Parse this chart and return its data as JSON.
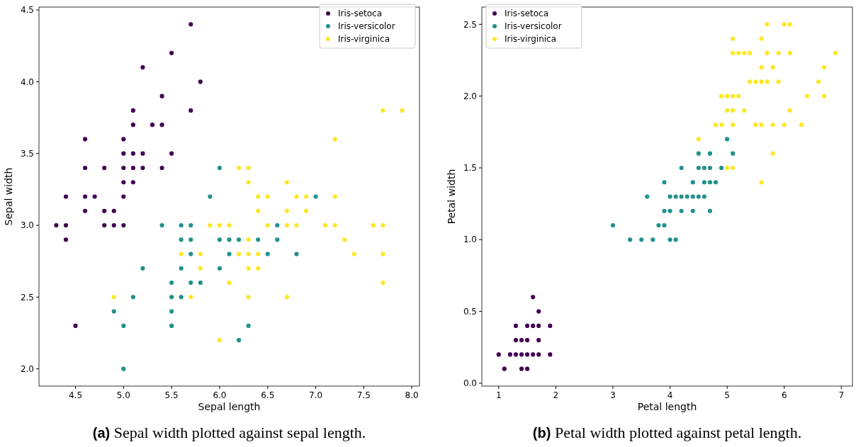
{
  "chart_data": [
    {
      "type": "scatter",
      "xlabel": "Sepal length",
      "ylabel": "Sepal width",
      "annotations": [
        "(a) Sepal width plotted against sepal length."
      ],
      "xlim": [
        4.12,
        8.08
      ],
      "ylim": [
        1.88,
        4.52
      ],
      "xticks": [
        {
          "value": 4.5,
          "label": "4.5"
        },
        {
          "value": 5,
          "label": "5.0"
        },
        {
          "value": 5.5,
          "label": "5.5"
        },
        {
          "value": 6,
          "label": "6.0"
        },
        {
          "value": 6.5,
          "label": "6.5"
        },
        {
          "value": 7,
          "label": "7.0"
        },
        {
          "value": 7.5,
          "label": "7.5"
        },
        {
          "value": 8,
          "label": "8.0"
        }
      ],
      "yticks": [
        {
          "value": 2,
          "label": "2.0"
        },
        {
          "value": 2.5,
          "label": "2.5"
        },
        {
          "value": 3,
          "label": "3.0"
        },
        {
          "value": 3.5,
          "label": "3.5"
        },
        {
          "value": 4,
          "label": "4.0"
        },
        {
          "value": 4.5,
          "label": "4.5"
        }
      ],
      "legend": "top right",
      "marker": "circle",
      "grid": false,
      "series": [
        {
          "name": "Iris-setoca",
          "color": "#440154",
          "x": [
            5.1,
            4.9,
            4.7,
            4.6,
            5.0,
            5.4,
            4.6,
            5.0,
            4.4,
            4.9,
            5.4,
            4.8,
            4.8,
            4.3,
            5.8,
            5.7,
            5.7,
            5.1,
            5.4,
            5.1,
            4.6,
            5.1,
            5.0,
            5.2,
            5.2,
            4.8,
            5.2,
            5.5,
            5.0,
            5.5,
            4.4,
            5.1,
            5.0,
            4.5,
            4.4,
            4.6,
            5.3,
            5.0
          ],
          "values": [
            3.5,
            3.0,
            3.2,
            3.1,
            3.6,
            3.9,
            3.4,
            3.4,
            2.9,
            3.1,
            3.7,
            3.4,
            3.0,
            3.0,
            4.0,
            4.4,
            3.8,
            3.8,
            3.4,
            3.7,
            3.6,
            3.3,
            3.0,
            3.5,
            3.4,
            3.1,
            4.1,
            4.2,
            3.2,
            3.5,
            3.0,
            3.4,
            3.5,
            2.3,
            3.2,
            3.2,
            3.7,
            3.3
          ]
        },
        {
          "name": "Iris-versicolor",
          "color": "#21918c",
          "x": [
            7.0,
            5.5,
            6.5,
            5.7,
            4.9,
            6.6,
            5.2,
            5.0,
            6.1,
            5.6,
            5.6,
            6.2,
            5.6,
            5.9,
            6.1,
            6.4,
            6.6,
            6.8,
            6.0,
            5.7,
            5.5,
            6.0,
            5.4,
            6.0,
            6.3,
            5.5,
            5.5,
            5.8,
            5.0,
            5.6,
            5.7,
            5.7,
            6.2,
            5.1
          ],
          "values": [
            3.2,
            2.3,
            2.8,
            2.8,
            2.4,
            2.9,
            2.7,
            2.0,
            2.9,
            2.9,
            3.0,
            2.2,
            2.5,
            3.2,
            2.8,
            2.9,
            3.0,
            2.8,
            2.9,
            2.6,
            2.4,
            2.7,
            3.0,
            3.4,
            2.3,
            2.5,
            2.6,
            2.6,
            2.3,
            2.7,
            3.0,
            2.9,
            2.9,
            2.5
          ]
        },
        {
          "name": "Iris-virginica",
          "color": "#fde725",
          "x": [
            6.3,
            5.8,
            7.1,
            6.3,
            6.5,
            7.6,
            4.9,
            7.3,
            6.7,
            7.2,
            6.5,
            6.4,
            6.8,
            5.7,
            5.8,
            6.4,
            7.7,
            7.7,
            6.0,
            6.9,
            5.6,
            7.7,
            6.3,
            6.7,
            7.2,
            6.2,
            6.1,
            6.4,
            7.2,
            7.4,
            7.9,
            6.3,
            6.1,
            7.7,
            6.3,
            6.4,
            6.0,
            6.9,
            6.7,
            6.8,
            6.7,
            6.3,
            6.2,
            5.9
          ],
          "values": [
            3.3,
            2.7,
            3.0,
            2.9,
            3.0,
            3.0,
            2.5,
            2.9,
            2.5,
            3.6,
            3.2,
            2.7,
            3.0,
            2.5,
            2.8,
            3.2,
            3.8,
            2.6,
            2.2,
            3.2,
            2.8,
            2.8,
            2.7,
            3.3,
            3.2,
            2.8,
            3.0,
            2.8,
            3.0,
            2.8,
            3.8,
            2.8,
            2.6,
            3.0,
            3.4,
            3.1,
            3.0,
            3.1,
            3.1,
            3.2,
            3.0,
            2.5,
            3.4,
            3.0
          ]
        }
      ]
    },
    {
      "type": "scatter",
      "xlabel": "Petal length",
      "ylabel": "Petal width",
      "annotations": [
        "(b) Petal width plotted against petal length."
      ],
      "xlim": [
        0.705,
        7.195
      ],
      "ylim": [
        -0.02,
        2.62
      ],
      "xticks": [
        1,
        2,
        3,
        4,
        5,
        6,
        7
      ],
      "yticks": [
        {
          "value": 0,
          "label": "0.0"
        },
        {
          "value": 0.5,
          "label": "0.5"
        },
        {
          "value": 1,
          "label": "1.0"
        },
        {
          "value": 1.5,
          "label": "1.5"
        },
        {
          "value": 2,
          "label": "2.0"
        },
        {
          "value": 2.5,
          "label": "2.5"
        }
      ],
      "legend": "top left",
      "marker": "circle",
      "grid": false,
      "series": [
        {
          "name": "Iris-setoca",
          "color": "#440154",
          "x": [
            1.4,
            1.3,
            1.5,
            1.7,
            1.4,
            1.5,
            1.6,
            1.4,
            1.1,
            1.2,
            1.5,
            1.3,
            1.7,
            1.5,
            1.7,
            1.0,
            1.7,
            1.9,
            1.6,
            1.3,
            1.6,
            1.9
          ],
          "values": [
            0.2,
            0.2,
            0.2,
            0.4,
            0.3,
            0.1,
            0.2,
            0.1,
            0.1,
            0.2,
            0.4,
            0.4,
            0.3,
            0.3,
            0.2,
            0.2,
            0.5,
            0.2,
            0.4,
            0.3,
            0.6,
            0.4
          ]
        },
        {
          "name": "Iris-versicolor",
          "color": "#21918c",
          "x": [
            4.7,
            4.5,
            4.9,
            4.0,
            4.6,
            4.5,
            4.7,
            3.3,
            4.6,
            3.9,
            3.5,
            4.2,
            4.0,
            3.6,
            4.4,
            4.1,
            3.9,
            4.7,
            4.3,
            4.8,
            5.0,
            3.8,
            3.7,
            3.9,
            5.1,
            4.5,
            4.7,
            4.4,
            4.1,
            4.4,
            4.6,
            4.0,
            4.2,
            4.2,
            3.0
          ],
          "values": [
            1.4,
            1.5,
            1.5,
            1.3,
            1.5,
            1.3,
            1.6,
            1.0,
            1.3,
            1.4,
            1.0,
            1.5,
            1.0,
            1.3,
            1.4,
            1.0,
            1.1,
            1.2,
            1.3,
            1.4,
            1.7,
            1.1,
            1.0,
            1.2,
            1.6,
            1.6,
            1.5,
            1.3,
            1.3,
            1.2,
            1.4,
            1.2,
            1.3,
            1.2,
            1.1
          ]
        },
        {
          "name": "Iris-virginica",
          "color": "#fde725",
          "x": [
            6.0,
            5.1,
            5.9,
            5.6,
            5.8,
            6.6,
            4.5,
            6.3,
            5.8,
            6.1,
            5.1,
            5.3,
            5.5,
            5.0,
            5.1,
            5.3,
            5.5,
            6.7,
            6.9,
            5.0,
            5.7,
            4.9,
            6.7,
            4.9,
            5.7,
            6.0,
            4.8,
            5.6,
            5.8,
            6.1,
            6.4,
            5.6,
            5.1,
            5.6,
            6.1,
            5.6,
            5.4,
            5.1,
            5.9,
            5.7,
            5.2,
            5.0,
            5.2,
            5.4,
            5.1
          ],
          "values": [
            2.5,
            1.9,
            2.1,
            1.8,
            2.2,
            2.1,
            1.7,
            1.8,
            1.8,
            2.5,
            2.0,
            1.9,
            2.1,
            2.0,
            2.4,
            2.3,
            1.8,
            2.2,
            2.3,
            1.5,
            2.3,
            2.0,
            2.0,
            1.8,
            2.1,
            1.8,
            1.8,
            2.1,
            1.6,
            1.9,
            2.0,
            2.2,
            1.5,
            1.4,
            2.3,
            2.4,
            2.1,
            2.3,
            2.3,
            2.5,
            2.3,
            1.9,
            2.0,
            2.3,
            1.8
          ]
        }
      ]
    }
  ]
}
